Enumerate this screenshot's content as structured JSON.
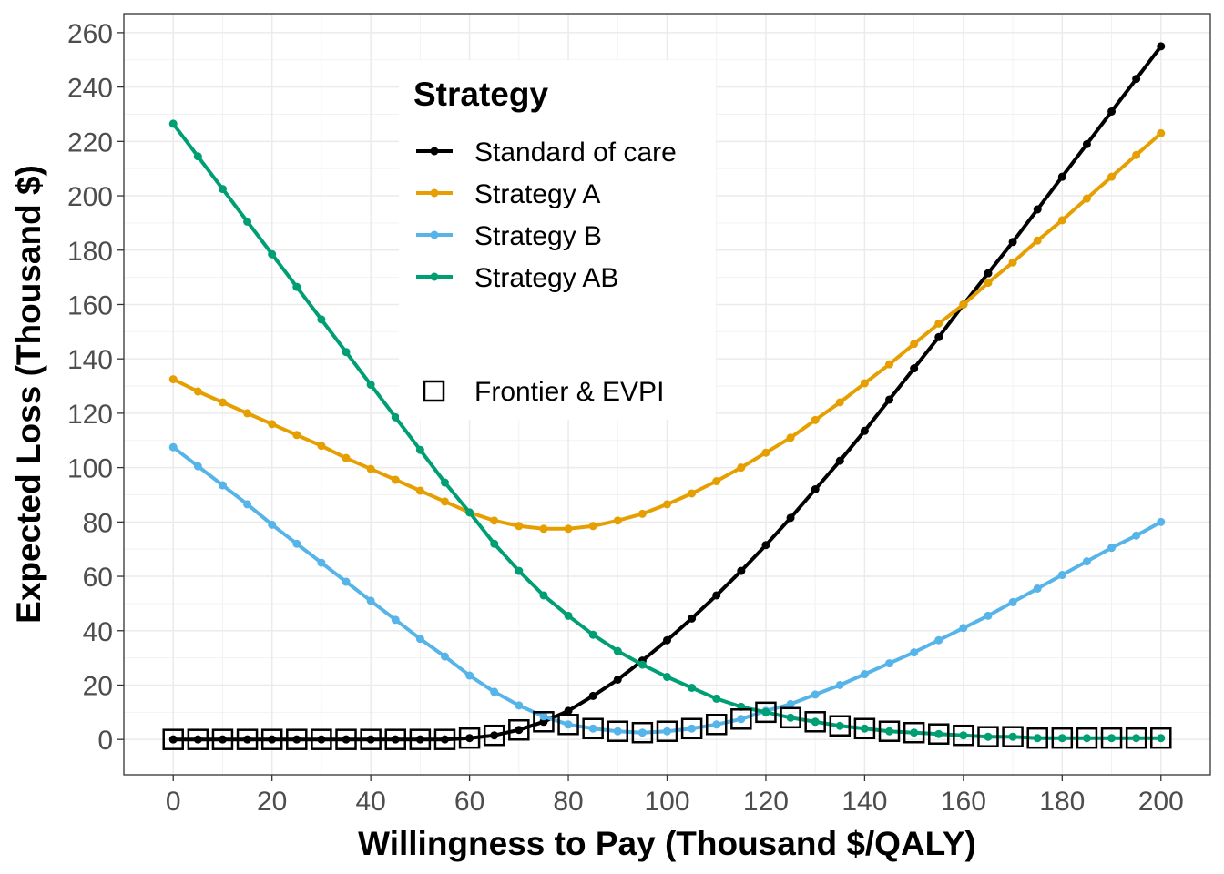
{
  "chart_data": {
    "type": "line",
    "title": "",
    "xlabel": "Willingness to Pay (Thousand $/QALY)",
    "ylabel": "Expected Loss (Thousand $)",
    "xlim": [
      -10,
      210
    ],
    "ylim": [
      -13,
      267
    ],
    "x_ticks": [
      0,
      20,
      40,
      60,
      80,
      100,
      120,
      140,
      160,
      180,
      200
    ],
    "y_ticks": [
      0,
      20,
      40,
      60,
      80,
      100,
      120,
      140,
      160,
      180,
      200,
      220,
      240,
      260
    ],
    "x_tick_labels": [
      "0",
      "20",
      "40",
      "60",
      "80",
      "100",
      "120",
      "140",
      "160",
      "180",
      "200"
    ],
    "y_tick_labels": [
      "0",
      "20",
      "40",
      "60",
      "80",
      "100",
      "120",
      "140",
      "160",
      "180",
      "200",
      "220",
      "240",
      "260"
    ],
    "grid": true,
    "legend": {
      "title": "Strategy",
      "placement": "top-center inside plot",
      "frontier_label": "Frontier & EVPI"
    },
    "x": [
      0,
      5,
      10,
      15,
      20,
      25,
      30,
      35,
      40,
      45,
      50,
      55,
      60,
      65,
      70,
      75,
      80,
      85,
      90,
      95,
      100,
      105,
      110,
      115,
      120,
      125,
      130,
      135,
      140,
      145,
      150,
      155,
      160,
      165,
      170,
      175,
      180,
      185,
      190,
      195,
      200
    ],
    "series": [
      {
        "name": "Standard of care",
        "color": "#000000",
        "values": [
          0,
          0,
          0,
          0,
          0,
          0,
          0,
          0,
          0,
          0,
          0,
          0,
          0.5,
          1.5,
          3.5,
          6.5,
          10.5,
          16,
          22,
          29,
          36.5,
          44.5,
          53,
          62,
          71.5,
          81.5,
          92,
          102.5,
          113.5,
          125,
          136.5,
          148,
          160,
          171.5,
          183,
          195,
          207,
          219,
          231,
          243,
          255
        ]
      },
      {
        "name": "Strategy A",
        "color": "#E69F00",
        "values": [
          132.5,
          128,
          124,
          120,
          116,
          112,
          108,
          103.5,
          99.5,
          95.5,
          91.5,
          87.5,
          83.5,
          80.5,
          78.5,
          77.5,
          77.5,
          78.5,
          80.5,
          83,
          86.5,
          90.5,
          95,
          100,
          105.5,
          111,
          117.5,
          124,
          131,
          138,
          145.5,
          153,
          160,
          168,
          175.5,
          183.5,
          191,
          199,
          207,
          215,
          223
        ]
      },
      {
        "name": "Strategy B",
        "color": "#56B4E9",
        "values": [
          107.5,
          100.5,
          93.5,
          86.5,
          79,
          72,
          65,
          58,
          51,
          44,
          37,
          30.5,
          23.5,
          17.5,
          12.5,
          8.5,
          5.5,
          4,
          3,
          2.5,
          3,
          4,
          5.5,
          7.5,
          10.5,
          13,
          16.5,
          20,
          24,
          28,
          32,
          36.5,
          41,
          45.5,
          50.5,
          55.5,
          60.5,
          65.5,
          70.5,
          75,
          80
        ]
      },
      {
        "name": "Strategy AB",
        "color": "#009E73",
        "values": [
          226.5,
          214.5,
          202.5,
          190.5,
          178.5,
          166.5,
          154.5,
          142.5,
          130.5,
          118.5,
          106.5,
          94.5,
          83.5,
          72,
          62,
          53,
          45.5,
          38.5,
          32.5,
          27.5,
          23,
          19,
          15,
          12,
          10,
          8,
          6.5,
          5,
          4,
          3,
          2.5,
          2,
          1.5,
          1,
          1,
          0.5,
          0.5,
          0.5,
          0.5,
          0.5,
          0.5
        ]
      },
      {
        "name": "Frontier & EVPI",
        "color": "#000000",
        "marker": "open-square",
        "values": [
          0,
          0,
          0,
          0,
          0,
          0,
          0,
          0,
          0,
          0,
          0,
          0,
          0.5,
          1.5,
          3.5,
          6.5,
          5.5,
          4,
          3,
          2.5,
          3,
          4,
          5.5,
          7.5,
          10,
          8,
          6.5,
          5,
          4,
          3,
          2.5,
          2,
          1.5,
          1,
          1,
          0.5,
          0.5,
          0.5,
          0.5,
          0.5,
          0.5
        ]
      }
    ]
  }
}
